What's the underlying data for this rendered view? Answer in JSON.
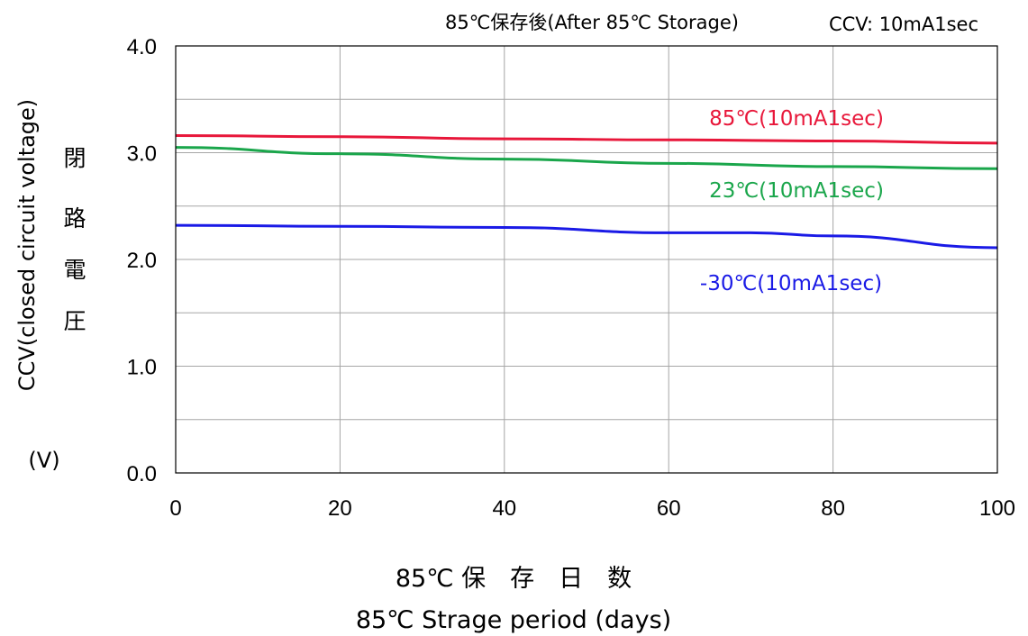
{
  "chart_data": {
    "type": "line",
    "title": "85℃保存後(After 85℃ Storage)",
    "subtitle": "CCV: 10mA1sec",
    "ylabel_main": "CCV(closed circuit  voltage)",
    "ylabel_jp": [
      "閉",
      "路",
      "電",
      "圧"
    ],
    "yunit": "(V)",
    "xlabel_jp": "85℃ 保　存　日　数",
    "xlabel_en": "85℃ Strage period (days)",
    "xlim": [
      0,
      100
    ],
    "ylim": [
      0.0,
      4.0
    ],
    "xticks": [
      0,
      20,
      40,
      60,
      80,
      100
    ],
    "xtick_labels": [
      "0",
      "20",
      "40",
      "60",
      "80",
      "100"
    ],
    "yticks": [
      0.0,
      1.0,
      2.0,
      3.0,
      4.0
    ],
    "ytick_labels": [
      "0.0",
      "1.0",
      "2.0",
      "3.0",
      "4.0"
    ],
    "grid": true,
    "series": [
      {
        "name": "85℃(10mA1sec)",
        "color": "#e8173a",
        "x": [
          0,
          20,
          40,
          60,
          80,
          100
        ],
        "y": [
          3.16,
          3.15,
          3.13,
          3.12,
          3.11,
          3.09
        ]
      },
      {
        "name": "23℃(10mA1sec)",
        "color": "#1aa64b",
        "x": [
          0,
          20,
          40,
          60,
          80,
          100
        ],
        "y": [
          3.05,
          2.99,
          2.94,
          2.9,
          2.87,
          2.85
        ]
      },
      {
        "name": "-30℃(10mA1sec)",
        "color": "#1a1ae6",
        "x": [
          0,
          20,
          40,
          60,
          70,
          80,
          100
        ],
        "y": [
          2.32,
          2.31,
          2.3,
          2.25,
          2.25,
          2.22,
          2.11
        ]
      }
    ]
  }
}
